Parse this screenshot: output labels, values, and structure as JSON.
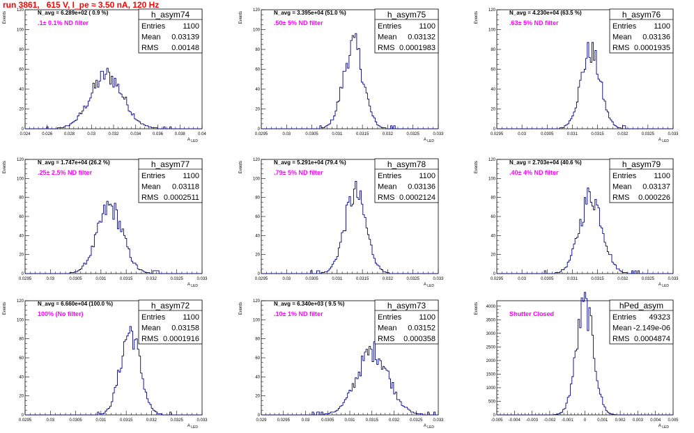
{
  "header": {
    "run_title": "run 3861,   615 V, I_pe ≈ 3.50 nA, 120 Hz"
  },
  "colors": {
    "title": "#ff0000",
    "filter_note": "#ff00ff",
    "histogram": "#000080",
    "frame": "#000000"
  },
  "chart_data": [
    {
      "type": "histogram",
      "name": "h_asym74",
      "navg": "N_avg = 6.289e+02 ( 0.9 %)",
      "filter": ".1± 0.1% ND filter",
      "stats": {
        "entries": "1100",
        "mean": "0.03139",
        "rms": "0.00148"
      },
      "xlim": [
        0.024,
        0.04
      ],
      "ylim": [
        0,
        120
      ],
      "xticks": [
        "0.024",
        "0.026",
        "0.028",
        "0.03",
        "0.032",
        "0.034",
        "0.036",
        "0.038",
        "0.04"
      ],
      "yticks": [
        "0",
        "20",
        "40",
        "60",
        "80",
        "100",
        "120"
      ],
      "xlabel": "A_LED",
      "ylabel": "Events",
      "mean": 0.03139,
      "rms": 0.00148,
      "peak": 54
    },
    {
      "type": "histogram",
      "name": "h_asym75",
      "navg": "N_avg = 3.395e+04 (51.0 %)",
      "filter": ".50± 5% ND filter",
      "stats": {
        "entries": "1100",
        "mean": "0.03132",
        "rms": "0.0001983"
      },
      "xlim": [
        0.0295,
        0.033
      ],
      "ylim": [
        0,
        120
      ],
      "xticks": [
        "0.0295",
        "0.03",
        "0.0305",
        "0.031",
        "0.0315",
        "0.032",
        "0.0325",
        "0.033"
      ],
      "yticks": [
        "0",
        "20",
        "40",
        "60",
        "80",
        "100",
        "120"
      ],
      "xlabel": "A_LED",
      "ylabel": "Events",
      "mean": 0.03132,
      "rms": 0.0001983,
      "peak": 84
    },
    {
      "type": "histogram",
      "name": "h_asym76",
      "navg": "N_avg = 4.230e+04 (63.5 %)",
      "filter": ".63± 5% ND filter",
      "stats": {
        "entries": "1100",
        "mean": "0.03136",
        "rms": "0.0001935"
      },
      "xlim": [
        0.0295,
        0.033
      ],
      "ylim": [
        0,
        120
      ],
      "xticks": [
        "0.0295",
        "0.03",
        "0.0305",
        "0.031",
        "0.0315",
        "0.032",
        "0.0325",
        "0.033"
      ],
      "yticks": [
        "0",
        "20",
        "40",
        "60",
        "80",
        "100",
        "120"
      ],
      "xlabel": "A_LED",
      "ylabel": "Events",
      "mean": 0.03136,
      "rms": 0.0001935,
      "peak": 78
    },
    {
      "type": "histogram",
      "name": "h_asym77",
      "navg": "N_avg = 1.747e+04 (26.2 %)",
      "filter": ".25± 2.5% ND filter",
      "stats": {
        "entries": "1100",
        "mean": "0.03118",
        "rms": "0.0002511"
      },
      "xlim": [
        0.0295,
        0.033
      ],
      "ylim": [
        0,
        120
      ],
      "xticks": [
        "0.0295",
        "0.03",
        "0.0305",
        "0.031",
        "0.0315",
        "0.032",
        "0.0325",
        "0.033"
      ],
      "yticks": [
        "0",
        "20",
        "40",
        "60",
        "80",
        "100",
        "120"
      ],
      "xlabel": "A_LED",
      "ylabel": "Events",
      "mean": 0.03118,
      "rms": 0.0002511,
      "peak": 70
    },
    {
      "type": "histogram",
      "name": "h_asym78",
      "navg": "N_avg = 5.291e+04 (79.4 %)",
      "filter": ".79± 5% ND filter",
      "stats": {
        "entries": "1100",
        "mean": "0.03136",
        "rms": "0.0002124"
      },
      "xlim": [
        0.0295,
        0.033
      ],
      "ylim": [
        0,
        120
      ],
      "xticks": [
        "0.0295",
        "0.03",
        "0.0305",
        "0.031",
        "0.0315",
        "0.032",
        "0.0325",
        "0.033"
      ],
      "yticks": [
        "0",
        "20",
        "40",
        "60",
        "80",
        "100",
        "120"
      ],
      "xlabel": "A_LED",
      "ylabel": "Events",
      "mean": 0.03136,
      "rms": 0.0002124,
      "peak": 84
    },
    {
      "type": "histogram",
      "name": "h_asym79",
      "navg": "N_avg = 2.703e+04 (40.6 %)",
      "filter": ".40± 4% ND filter",
      "stats": {
        "entries": "1100",
        "mean": "0.03137",
        "rms": "0.000226"
      },
      "xlim": [
        0.0295,
        0.033
      ],
      "ylim": [
        0,
        120
      ],
      "xticks": [
        "0.0295",
        "0.03",
        "0.0305",
        "0.031",
        "0.0315",
        "0.032",
        "0.0325",
        "0.033"
      ],
      "yticks": [
        "0",
        "20",
        "40",
        "60",
        "80",
        "100",
        "120"
      ],
      "xlabel": "A_LED",
      "ylabel": "Events",
      "mean": 0.03137,
      "rms": 0.000226,
      "peak": 82
    },
    {
      "type": "histogram",
      "name": "h_asym72",
      "navg": "N_avg = 6.660e+04 (100.0 %)",
      "filter": "100% (No filter)",
      "stats": {
        "entries": "1100",
        "mean": "0.03158",
        "rms": "0.0001916"
      },
      "xlim": [
        0.0295,
        0.033
      ],
      "ylim": [
        0,
        120
      ],
      "xticks": [
        "0.0295",
        "0.03",
        "0.0305",
        "0.031",
        "0.0315",
        "0.032",
        "0.0325",
        "0.033"
      ],
      "yticks": [
        "0",
        "20",
        "40",
        "60",
        "80",
        "100",
        "120"
      ],
      "xlabel": "A_LED",
      "ylabel": "Events",
      "mean": 0.03158,
      "rms": 0.0001916,
      "peak": 88
    },
    {
      "type": "histogram",
      "name": "h_asym73",
      "navg": "N_avg = 6.340e+03 ( 9.5 %)",
      "filter": ".10± 1% ND filter",
      "stats": {
        "entries": "1100",
        "mean": "0.03152",
        "rms": "0.000358"
      },
      "xlim": [
        0.029,
        0.033
      ],
      "ylim": [
        0,
        120
      ],
      "xticks": [
        "0.029",
        "0.0295",
        "0.03",
        "0.0305",
        "0.031",
        "0.0315",
        "0.032",
        "0.0325",
        "0.033"
      ],
      "yticks": [
        "0",
        "20",
        "40",
        "60",
        "80",
        "100",
        "120"
      ],
      "xlabel": "A_LED",
      "ylabel": "Events",
      "mean": 0.03152,
      "rms": 0.000358,
      "peak": 67
    },
    {
      "type": "histogram",
      "name": "hPed_asym",
      "navg": "",
      "filter": "Shutter Closed",
      "stats": {
        "entries": "49323",
        "mean": "-2.149e-06",
        "rms": "0.0004874"
      },
      "xlim": [
        -0.005,
        0.005
      ],
      "ylim": [
        0,
        4200
      ],
      "xticks": [
        "-0.005",
        "-0.004",
        "-0.003",
        "-0.002",
        "-0.001",
        "0",
        "0.001",
        "0.002",
        "0.003",
        "0.004",
        "0.005"
      ],
      "yticks": [
        "0",
        "500",
        "1000",
        "1500",
        "2000",
        "2500",
        "3000",
        "3500",
        "4000"
      ],
      "xlabel": "A_LED",
      "ylabel": "Events",
      "mean": -2.149e-06,
      "rms": 0.0004874,
      "peak": 4000
    }
  ]
}
